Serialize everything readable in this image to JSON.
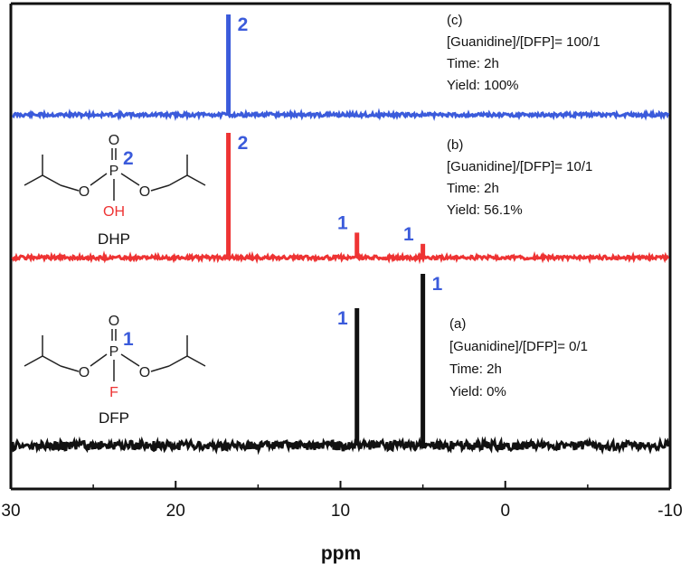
{
  "chart_data": {
    "type": "line",
    "xlabel": "ppm",
    "ylabel": "",
    "xlim": [
      30,
      -10
    ],
    "x_ticks": [
      30,
      20,
      10,
      0,
      -10
    ],
    "series": [
      {
        "color": "#3b5bdb",
        "peaks": [
          {
            "x": 16.8,
            "height": 1.0,
            "label": "2"
          }
        ],
        "info": [
          "(c)",
          "[Guanidine]/[DFP]= 100/1",
          "Time: 2h",
          "Yield: 100%"
        ]
      },
      {
        "color": "#ee3333",
        "peaks": [
          {
            "x": 16.8,
            "height": 1.0,
            "label": "2"
          },
          {
            "x": 9.0,
            "height": 0.2,
            "label": "1"
          },
          {
            "x": 5.0,
            "height": 0.11,
            "label": "1"
          }
        ],
        "info": [
          "(b)",
          "[Guanidine]/[DFP]= 10/1",
          "Time: 2h",
          "Yield: 56.1%"
        ]
      },
      {
        "color": "#111111",
        "peaks": [
          {
            "x": 9.0,
            "height": 0.8,
            "label": "1"
          },
          {
            "x": 5.0,
            "height": 1.0,
            "label": "1"
          }
        ],
        "info": [
          "(a)",
          "[Guanidine]/[DFP]= 0/1",
          "Time: 2h",
          "Yield: 0%"
        ]
      }
    ]
  },
  "structures": {
    "dhp": {
      "name": "DHP",
      "atoms": {
        "o_top": "O",
        "p": "P",
        "o_left": "O",
        "o_right": "O",
        "sub": "OH"
      },
      "number": "2"
    },
    "dfp": {
      "name": "DFP",
      "atoms": {
        "o_top": "O",
        "p": "P",
        "o_left": "O",
        "o_right": "O",
        "sub": "F"
      },
      "number": "1"
    }
  },
  "colors": {
    "blue_label": "#3b5bdb",
    "red_atom": "#ee3333",
    "axis": "#111111"
  }
}
